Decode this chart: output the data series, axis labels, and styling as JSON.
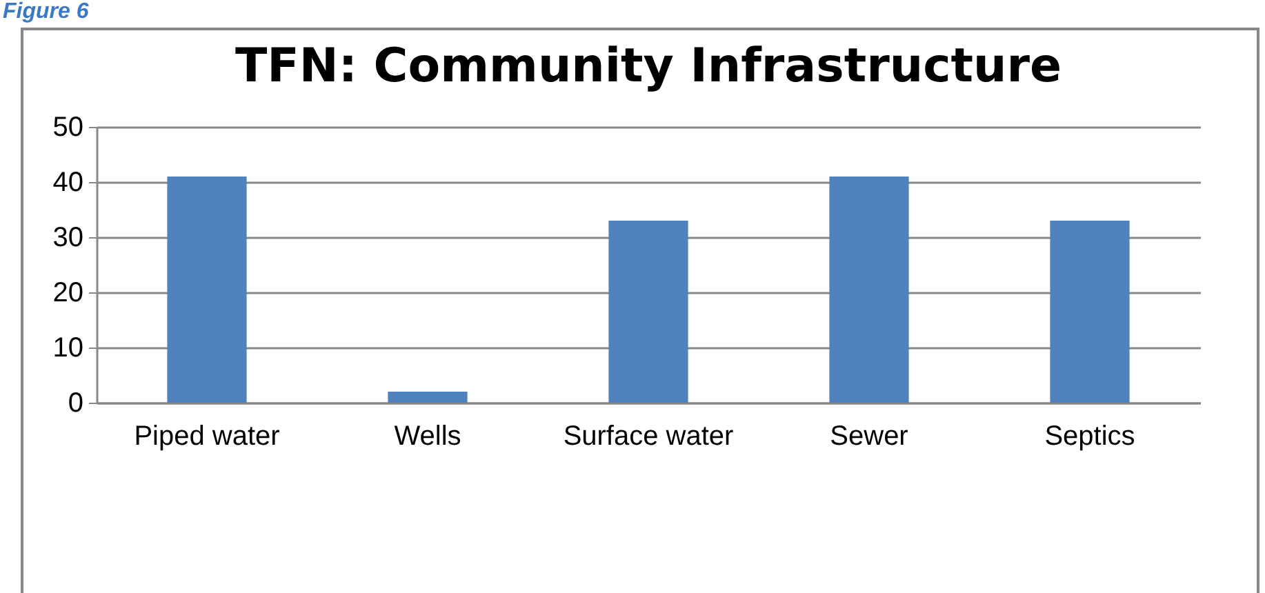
{
  "chart_data": {
    "type": "bar",
    "title": "TFN: Community Infrastructure",
    "annotations": [
      "Figure 6"
    ],
    "categories": [
      "Piped water",
      "Wells",
      "Surface water",
      "Sewer",
      "Septics"
    ],
    "values": [
      41,
      2,
      33,
      41,
      33
    ],
    "color": "#4f81bd",
    "ylim": [
      0,
      50
    ],
    "yticks": [
      0,
      10,
      20,
      30,
      40,
      50
    ],
    "grid": "y"
  }
}
